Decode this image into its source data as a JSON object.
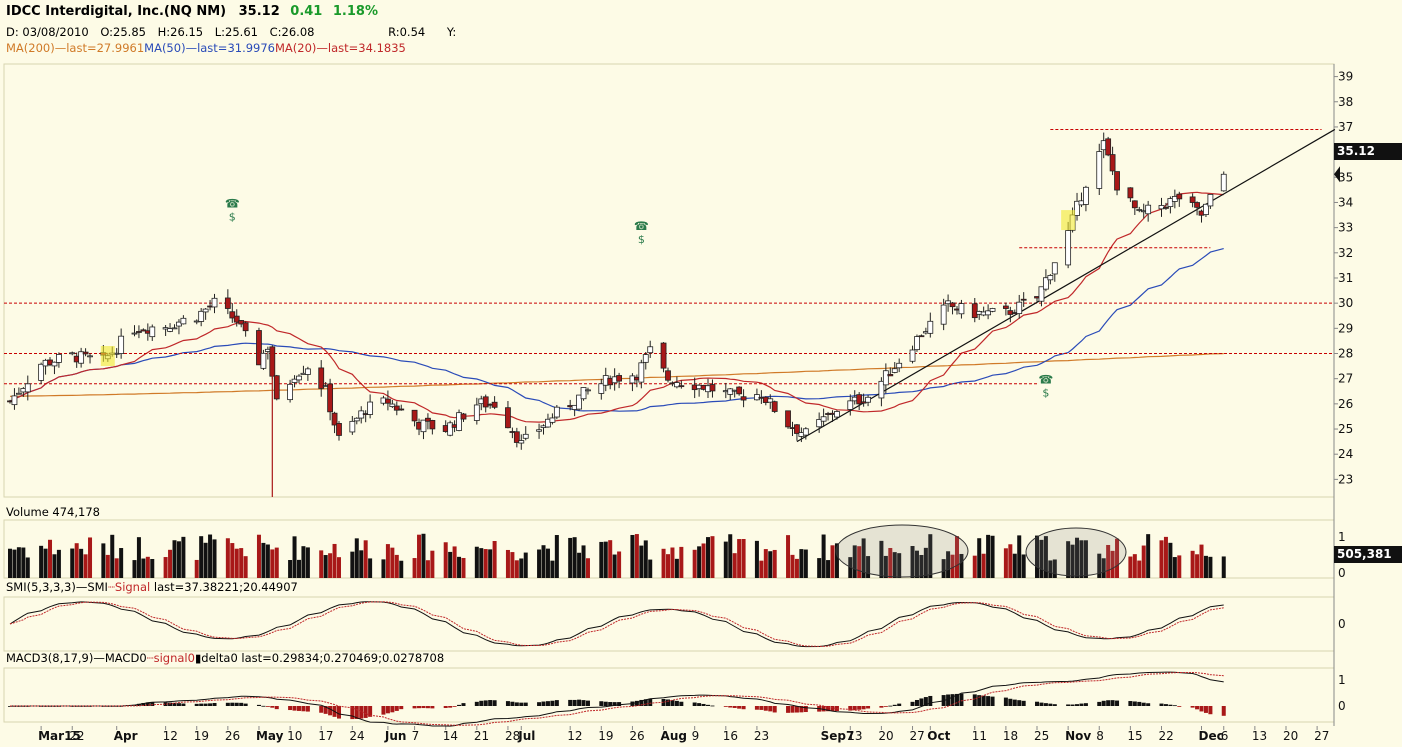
{
  "header": {
    "symbol": "IDCC Interdigital, Inc.(NQ NM)",
    "last": "35.12",
    "change": "0.41",
    "change_pct": "1.18%",
    "date": "D: 03/08/2010",
    "open": "O:25.85",
    "high": "H:26.15",
    "low": "L:25.61",
    "close": "C:26.08",
    "r": "R:0.54",
    "y": "Y:"
  },
  "ma_legend": {
    "ma200": "MA(200)",
    "ma200_last": "last=27.9961",
    "ma50": "MA(50)",
    "ma50_last": "last=31.9976",
    "ma20": "MA(20)",
    "ma20_last": "last=34.1835"
  },
  "volume_label": "Volume 474,178",
  "volume_badge": "505,381",
  "smi_label": "SMI(5,3,3,3)",
  "smi_series": "SMI",
  "smi_signal": "Signal",
  "smi_values": "last=37.38221;20.44907",
  "macd_label": "MACD3(8,17,9)",
  "macd_series": "MACD",
  "macd_signal": "signal",
  "macd_delta": "delta",
  "macd_values": "last=0.29834;0.270469;0.0278708",
  "price_badge": "35.12",
  "colors": {
    "background": "#fdfbe6",
    "up_candle": "#ffffff",
    "down_candle": "#a81818",
    "ma20": "#c0282a",
    "ma50": "#2a4bb8",
    "ma200": "#d07a28",
    "level_line": "#c80000",
    "positive": "#1a9a2a"
  },
  "chart_data": {
    "type": "candlestick",
    "title": "IDCC Interdigital, Inc.(NQ NM)",
    "price_axis": {
      "ticks": [
        "23",
        "24",
        "25",
        "26",
        "27",
        "28",
        "29",
        "30",
        "31",
        "32",
        "33",
        "34",
        "35",
        "36",
        "37",
        "38",
        "39"
      ],
      "ylim": [
        22.3,
        39.5
      ]
    },
    "x_ticks": [
      {
        "date": "2010-03-15",
        "label": "Mar15"
      },
      {
        "date": "2010-03-22",
        "label": "22"
      },
      {
        "date": "2010-04-01",
        "label": "Apr"
      },
      {
        "date": "2010-04-12",
        "label": "12"
      },
      {
        "date": "2010-04-19",
        "label": "19"
      },
      {
        "date": "2010-04-26",
        "label": "26"
      },
      {
        "date": "2010-05-03",
        "label": "May"
      },
      {
        "date": "2010-05-10",
        "label": "10"
      },
      {
        "date": "2010-05-17",
        "label": "17"
      },
      {
        "date": "2010-05-24",
        "label": "24"
      },
      {
        "date": "2010-06-01",
        "label": "Jun"
      },
      {
        "date": "2010-06-07",
        "label": "7"
      },
      {
        "date": "2010-06-14",
        "label": "14"
      },
      {
        "date": "2010-06-21",
        "label": "21"
      },
      {
        "date": "2010-06-28",
        "label": "28"
      },
      {
        "date": "2010-07-01",
        "label": "Jul"
      },
      {
        "date": "2010-07-12",
        "label": "12"
      },
      {
        "date": "2010-07-19",
        "label": "19"
      },
      {
        "date": "2010-07-26",
        "label": "26"
      },
      {
        "date": "2010-08-02",
        "label": "Aug"
      },
      {
        "date": "2010-08-09",
        "label": "9"
      },
      {
        "date": "2010-08-16",
        "label": "16"
      },
      {
        "date": "2010-08-23",
        "label": "23"
      },
      {
        "date": "2010-09-07",
        "label": "Sep7"
      },
      {
        "date": "2010-09-13",
        "label": "13"
      },
      {
        "date": "2010-09-20",
        "label": "20"
      },
      {
        "date": "2010-09-27",
        "label": "27"
      },
      {
        "date": "2010-10-01",
        "label": "Oct"
      },
      {
        "date": "2010-10-11",
        "label": "11"
      },
      {
        "date": "2010-10-18",
        "label": "18"
      },
      {
        "date": "2010-10-25",
        "label": "25"
      },
      {
        "date": "2010-11-01",
        "label": "Nov"
      },
      {
        "date": "2010-11-08",
        "label": "8"
      },
      {
        "date": "2010-11-15",
        "label": "15"
      },
      {
        "date": "2010-11-22",
        "label": "22"
      },
      {
        "date": "2010-12-01",
        "label": "Dec"
      },
      {
        "date": "2010-12-06",
        "label": "6"
      },
      {
        "date": "2010-12-13",
        "label": "13"
      },
      {
        "date": "2010-12-20",
        "label": "20"
      },
      {
        "date": "2010-12-27",
        "label": "27"
      }
    ],
    "price_keypoints": [
      [
        "2010-03-08",
        26.1
      ],
      [
        "2010-03-15",
        27.6
      ],
      [
        "2010-03-22",
        27.9
      ],
      [
        "2010-03-29",
        27.7
      ],
      [
        "2010-04-05",
        29.0
      ],
      [
        "2010-04-12",
        29.1
      ],
      [
        "2010-04-19",
        29.5
      ],
      [
        "2010-04-23",
        30.0
      ],
      [
        "2010-04-28",
        29.3
      ],
      [
        "2010-05-03",
        27.7
      ],
      [
        "2010-05-05",
        28.3
      ],
      [
        "2010-05-07",
        26.0
      ],
      [
        "2010-05-11",
        27.2
      ],
      [
        "2010-05-14",
        27.5
      ],
      [
        "2010-05-18",
        26.5
      ],
      [
        "2010-05-21",
        24.6
      ],
      [
        "2010-05-27",
        25.8
      ],
      [
        "2010-06-01",
        26.1
      ],
      [
        "2010-06-08",
        25.2
      ],
      [
        "2010-06-14",
        25.0
      ],
      [
        "2010-06-21",
        26.0
      ],
      [
        "2010-06-25",
        26.0
      ],
      [
        "2010-06-29",
        25.0
      ],
      [
        "2010-07-01",
        24.4
      ],
      [
        "2010-07-08",
        25.5
      ],
      [
        "2010-07-15",
        26.4
      ],
      [
        "2010-07-21",
        27.0
      ],
      [
        "2010-07-27",
        27.2
      ],
      [
        "2010-07-30",
        28.1
      ],
      [
        "2010-08-03",
        27.0
      ],
      [
        "2010-08-11",
        26.7
      ],
      [
        "2010-08-18",
        26.3
      ],
      [
        "2010-08-24",
        26.4
      ],
      [
        "2010-08-30",
        25.2
      ],
      [
        "2010-09-03",
        24.8
      ],
      [
        "2010-09-10",
        25.8
      ],
      [
        "2010-09-17",
        26.3
      ],
      [
        "2010-09-23",
        27.5
      ],
      [
        "2010-09-29",
        28.8
      ],
      [
        "2010-10-05",
        29.9
      ],
      [
        "2010-10-11",
        29.6
      ],
      [
        "2010-10-18",
        29.6
      ],
      [
        "2010-10-25",
        30.2
      ],
      [
        "2010-11-01",
        32.8
      ],
      [
        "2010-11-05",
        34.8
      ],
      [
        "2010-11-09",
        36.3
      ],
      [
        "2010-11-12",
        34.7
      ],
      [
        "2010-11-17",
        33.5
      ],
      [
        "2010-11-22",
        33.9
      ],
      [
        "2010-11-26",
        34.2
      ],
      [
        "2010-12-01",
        33.5
      ],
      [
        "2010-12-06",
        35.12
      ]
    ],
    "ma20_last": 34.1835,
    "ma50_last": 31.9976,
    "ma200_last": 27.9961,
    "horizontal_levels": [
      30.0,
      28.0,
      26.8,
      36.9,
      32.2
    ],
    "trendline": [
      [
        "2010-09-01",
        24.5
      ],
      [
        "2010-12-31",
        36.9
      ]
    ],
    "volume_ticks": [
      "1",
      "0"
    ],
    "volume_last": 505381,
    "smi_ticks": [
      "0"
    ],
    "smi_last": [
      37.38221,
      20.44907
    ],
    "macd_ticks": [
      "1",
      "0"
    ],
    "macd_last": [
      0.29834,
      0.270469,
      0.0278708
    ],
    "last_price": 35.12
  }
}
